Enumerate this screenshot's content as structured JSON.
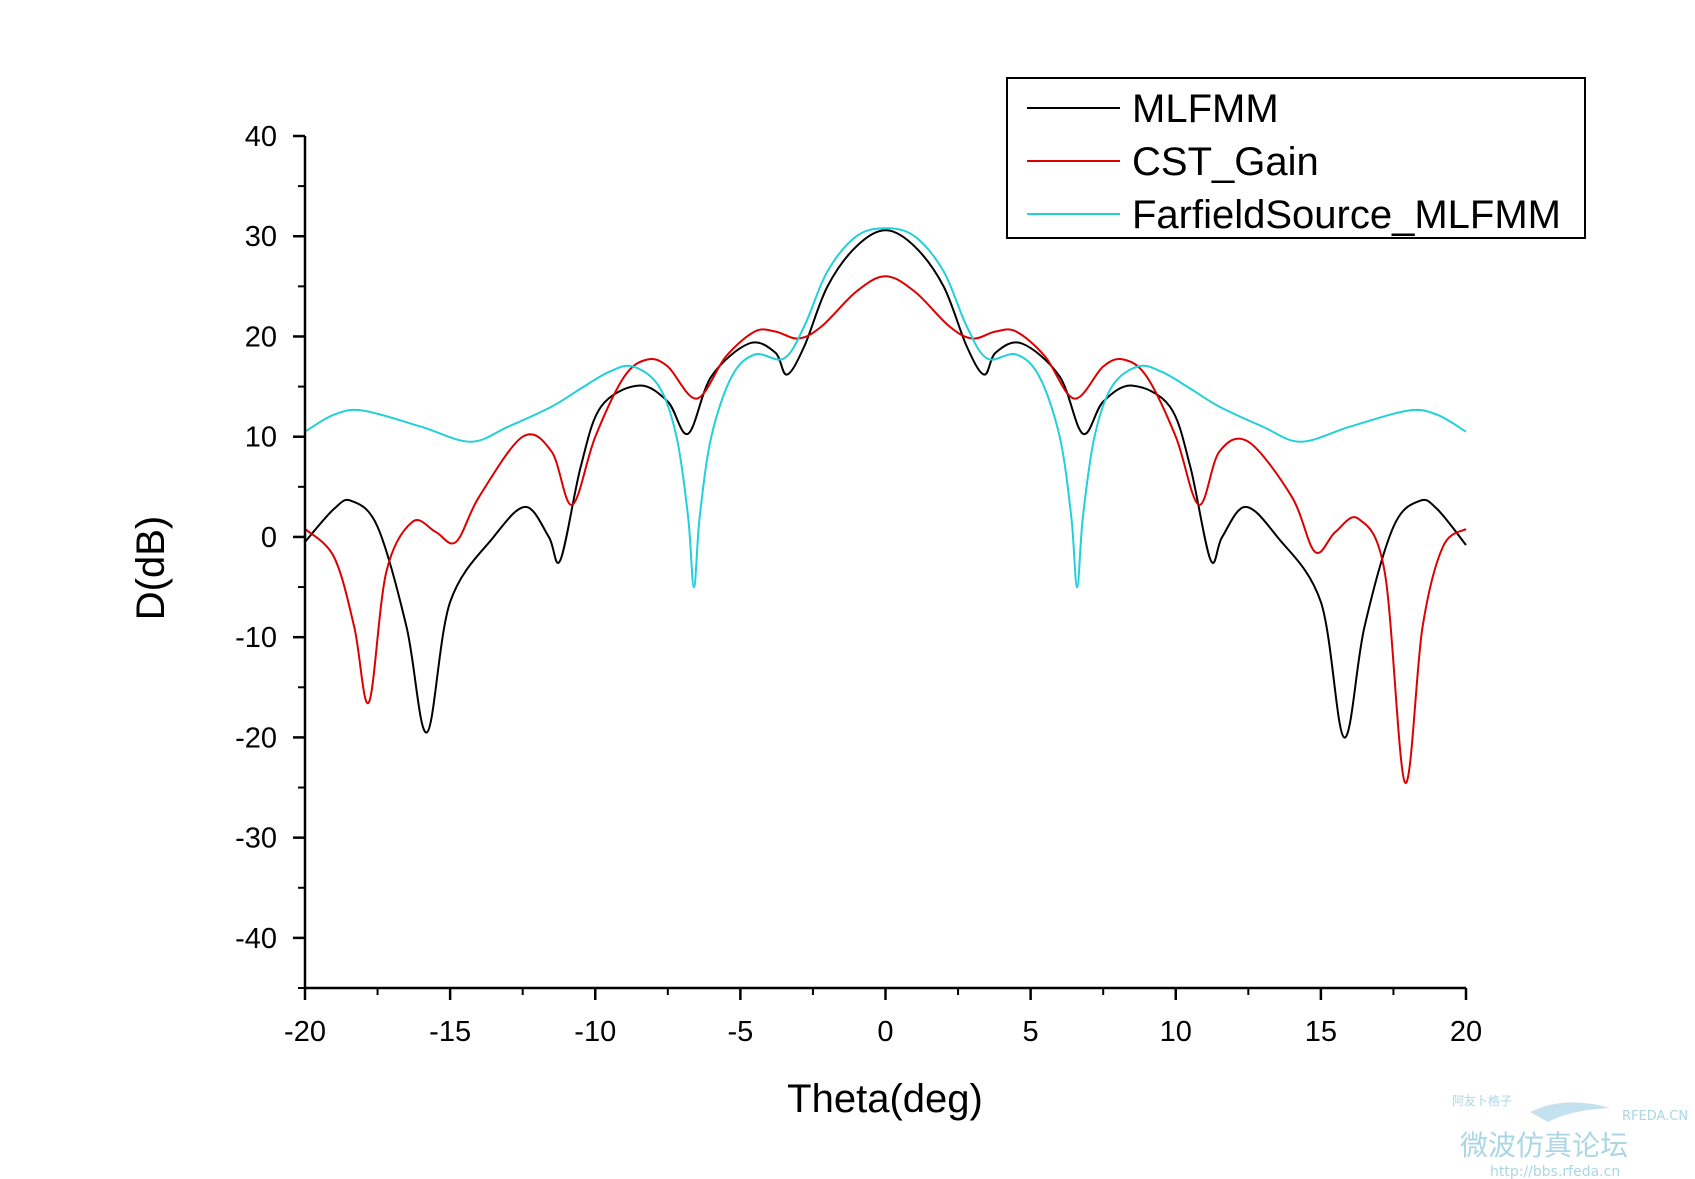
{
  "chart_data": {
    "type": "line",
    "title": "",
    "xlabel": "Theta(deg)",
    "ylabel": "D(dB)",
    "xlim": [
      -20,
      20
    ],
    "ylim": [
      -45,
      40
    ],
    "xticks": [
      -20,
      -15,
      -10,
      -5,
      0,
      5,
      10,
      15,
      20
    ],
    "xtick_labels": [
      "-20",
      "-15",
      "-10",
      "-5",
      "0",
      "5",
      "10",
      "15",
      "20"
    ],
    "yticks": [
      -40,
      -30,
      -20,
      -10,
      0,
      10,
      20,
      30,
      40
    ],
    "ytick_labels": [
      "-40",
      "-30",
      "-20",
      "-10",
      "0",
      "10",
      "20",
      "30",
      "40"
    ],
    "grid": false,
    "legend_position": "top-right",
    "series": [
      {
        "name": "MLFMM",
        "color": "#000000",
        "x": [
          -20,
          -19,
          -18.4,
          -17.5,
          -16.5,
          -15.8,
          -15,
          -13.5,
          -12.4,
          -11.6,
          -11.2,
          -10.5,
          -9.8,
          -8.5,
          -7.5,
          -6.8,
          -6,
          -4.7,
          -3.8,
          -3.4,
          -2.8,
          -2,
          -1,
          0,
          1,
          2,
          2.8,
          3.4,
          3.8,
          4.7,
          6,
          6.8,
          7.5,
          8.5,
          9.8,
          10.5,
          11.2,
          11.6,
          12.4,
          13.5,
          15,
          15.8,
          16.5,
          17.5,
          18.4,
          19,
          20
        ],
        "y": [
          -0.5,
          2.8,
          3.6,
          1,
          -9,
          -19.5,
          -6.5,
          0,
          3,
          0,
          -2.3,
          7,
          13,
          15.1,
          13.5,
          10.3,
          16,
          19.3,
          18.4,
          16.2,
          19,
          25,
          29,
          30.6,
          29,
          25,
          19,
          16.2,
          18.4,
          19.3,
          16,
          10.3,
          13.5,
          15.1,
          13,
          7,
          -2.3,
          0,
          3,
          0,
          -6.5,
          -20,
          -9,
          1,
          3.6,
          2.8,
          -0.8
        ]
      },
      {
        "name": "CST_Gain",
        "color": "#dd0000",
        "x": [
          -20,
          -19,
          -18.3,
          -17.8,
          -17.2,
          -16.3,
          -15.5,
          -14.8,
          -14,
          -12.5,
          -11.5,
          -10.8,
          -10,
          -9,
          -8.2,
          -7.5,
          -6.5,
          -5.5,
          -4.5,
          -3.8,
          -3,
          -2.2,
          -1,
          0,
          1,
          2.2,
          3,
          3.8,
          4.5,
          5.5,
          6.5,
          7.5,
          8.2,
          9,
          10,
          10.8,
          11.5,
          12.5,
          14,
          14.8,
          15.5,
          16.3,
          17.2,
          17.9,
          18.5,
          19.2,
          20
        ],
        "y": [
          0.8,
          -2,
          -9,
          -16.5,
          -3.5,
          1.5,
          0.5,
          -0.5,
          4,
          10,
          8.5,
          3.2,
          10,
          16,
          17.7,
          17,
          13.8,
          18,
          20.5,
          20.5,
          19.8,
          21,
          24.5,
          26,
          24.5,
          21,
          19.8,
          20.5,
          20.5,
          18,
          13.8,
          17,
          17.7,
          16,
          10,
          3.2,
          8.5,
          9.5,
          4,
          -1.5,
          0.5,
          1.8,
          -3.5,
          -24.5,
          -9,
          -1,
          0.8
        ]
      },
      {
        "name": "FarfieldSource_MLFMM",
        "color": "#22d0d8",
        "x": [
          -20,
          -19,
          -18,
          -16,
          -14.3,
          -13,
          -11.5,
          -10.5,
          -9.5,
          -8.7,
          -7.8,
          -7.2,
          -6.8,
          -6.6,
          -6.4,
          -6,
          -5.3,
          -4.5,
          -3.5,
          -2.8,
          -2,
          -1,
          0,
          1,
          2,
          2.8,
          3.5,
          4.5,
          5.3,
          6,
          6.4,
          6.6,
          6.8,
          7.2,
          7.8,
          8.7,
          9.5,
          10.5,
          11.5,
          13,
          14.3,
          16,
          18,
          19,
          20
        ],
        "y": [
          10.5,
          12.2,
          12.6,
          11,
          9.5,
          11,
          13,
          14.8,
          16.5,
          17,
          15,
          10,
          2,
          -5,
          2,
          10,
          16,
          18.2,
          17.8,
          21,
          26.5,
          30,
          30.8,
          30,
          26.5,
          21,
          17.8,
          18.2,
          16,
          10,
          2,
          -5,
          2,
          10,
          15,
          17,
          16.5,
          14.8,
          13,
          11,
          9.5,
          11,
          12.6,
          12.2,
          10.5
        ]
      }
    ]
  },
  "watermark": {
    "line1": "阿友卜格子",
    "line2": "RFEDA.CN",
    "line3": "微波仿真论坛",
    "line4": "http://bbs.rfeda.cn"
  }
}
